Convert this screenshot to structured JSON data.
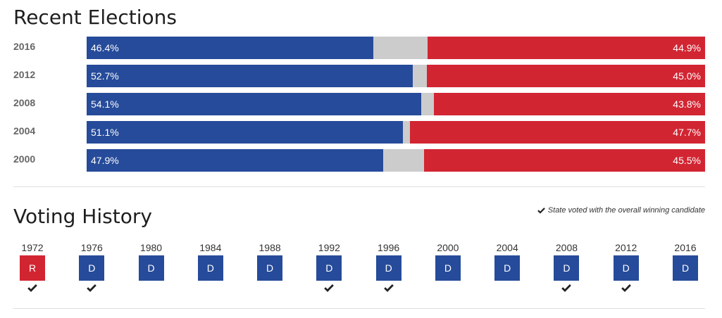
{
  "recent_elections": {
    "title": "Recent Elections"
  },
  "voting_history": {
    "title": "Voting History",
    "legend": "State voted with the overall winning candidate"
  },
  "colors": {
    "dem": "#264b9a",
    "rep": "#d22532",
    "other": "#cccccc"
  },
  "chart_data": [
    {
      "type": "bar",
      "title": "Recent Elections",
      "orientation": "horizontal-stacked",
      "categories": [
        "2016",
        "2012",
        "2008",
        "2004",
        "2000"
      ],
      "series": [
        {
          "name": "Democratic",
          "values": [
            46.4,
            52.7,
            54.1,
            51.1,
            47.9
          ],
          "labels": [
            "46.4%",
            "52.7%",
            "54.1%",
            "51.1%",
            "47.9%"
          ]
        },
        {
          "name": "Republican",
          "values": [
            44.9,
            45.0,
            43.8,
            47.7,
            45.5
          ],
          "labels": [
            "44.9%",
            "45.0%",
            "43.8%",
            "47.7%",
            "45.5%"
          ]
        }
      ],
      "xlim": [
        0,
        100
      ]
    },
    {
      "type": "table",
      "title": "Voting History",
      "items": [
        {
          "year": "1972",
          "party": "R",
          "won": true
        },
        {
          "year": "1976",
          "party": "D",
          "won": true
        },
        {
          "year": "1980",
          "party": "D",
          "won": false
        },
        {
          "year": "1984",
          "party": "D",
          "won": false
        },
        {
          "year": "1988",
          "party": "D",
          "won": false
        },
        {
          "year": "1992",
          "party": "D",
          "won": true
        },
        {
          "year": "1996",
          "party": "D",
          "won": true
        },
        {
          "year": "2000",
          "party": "D",
          "won": false
        },
        {
          "year": "2004",
          "party": "D",
          "won": false
        },
        {
          "year": "2008",
          "party": "D",
          "won": true
        },
        {
          "year": "2012",
          "party": "D",
          "won": true
        },
        {
          "year": "2016",
          "party": "D",
          "won": false
        }
      ]
    }
  ]
}
